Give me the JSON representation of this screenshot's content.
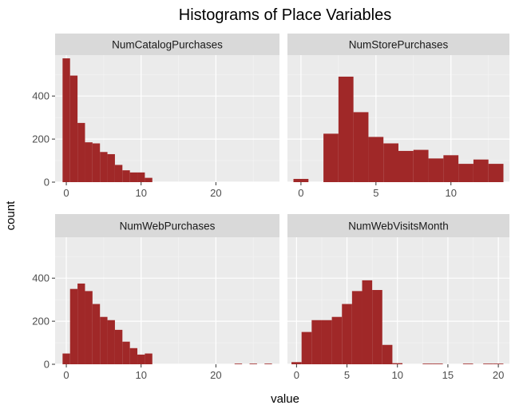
{
  "title": "Histograms of Place Variables",
  "xlabel": "value",
  "ylabel": "count",
  "colors": {
    "bar": "#A02828",
    "panel_bg": "#EBEBEB",
    "strip_bg": "#D9D9D9",
    "grid_major": "#FFFFFF",
    "grid_minor": "#F5F5F5",
    "tick_text": "#4D4D4D",
    "strip_text": "#1A1A1A"
  },
  "chart_data": [
    {
      "type": "bar",
      "panel": "NumCatalogPurchases",
      "bin_width": 1,
      "xlim": [
        -1.5,
        28.5
      ],
      "ylim": [
        0,
        590
      ],
      "x_ticks": [
        0,
        10,
        20
      ],
      "y_ticks": [
        0,
        200,
        400
      ],
      "bins": [
        {
          "x": 0,
          "count": 575
        },
        {
          "x": 1,
          "count": 495
        },
        {
          "x": 2,
          "count": 275
        },
        {
          "x": 3,
          "count": 185
        },
        {
          "x": 4,
          "count": 180
        },
        {
          "x": 5,
          "count": 140
        },
        {
          "x": 6,
          "count": 130
        },
        {
          "x": 7,
          "count": 80
        },
        {
          "x": 8,
          "count": 55
        },
        {
          "x": 9,
          "count": 45
        },
        {
          "x": 10,
          "count": 45
        },
        {
          "x": 11,
          "count": 20
        }
      ]
    },
    {
      "type": "bar",
      "panel": "NumStorePurchases",
      "bin_width": 1,
      "xlim": [
        -0.9,
        13.9
      ],
      "ylim": [
        0,
        590
      ],
      "x_ticks": [
        0,
        5,
        10
      ],
      "y_ticks": [
        0,
        200,
        400
      ],
      "bins": [
        {
          "x": 0,
          "count": 15
        },
        {
          "x": 2,
          "count": 225
        },
        {
          "x": 3,
          "count": 490
        },
        {
          "x": 4,
          "count": 325
        },
        {
          "x": 5,
          "count": 210
        },
        {
          "x": 6,
          "count": 180
        },
        {
          "x": 7,
          "count": 145
        },
        {
          "x": 8,
          "count": 150
        },
        {
          "x": 9,
          "count": 110
        },
        {
          "x": 10,
          "count": 125
        },
        {
          "x": 11,
          "count": 85
        },
        {
          "x": 12,
          "count": 105
        },
        {
          "x": 13,
          "count": 85
        }
      ]
    },
    {
      "type": "bar",
      "panel": "NumWebPurchases",
      "bin_width": 1,
      "xlim": [
        -1.5,
        28.5
      ],
      "ylim": [
        0,
        590
      ],
      "x_ticks": [
        0,
        10,
        20
      ],
      "y_ticks": [
        0,
        200,
        400
      ],
      "bins": [
        {
          "x": 0,
          "count": 50
        },
        {
          "x": 1,
          "count": 350
        },
        {
          "x": 2,
          "count": 375
        },
        {
          "x": 3,
          "count": 340
        },
        {
          "x": 4,
          "count": 280
        },
        {
          "x": 5,
          "count": 220
        },
        {
          "x": 6,
          "count": 205
        },
        {
          "x": 7,
          "count": 160
        },
        {
          "x": 8,
          "count": 105
        },
        {
          "x": 9,
          "count": 75
        },
        {
          "x": 10,
          "count": 45
        },
        {
          "x": 11,
          "count": 50
        },
        {
          "x": 23,
          "count": 3
        },
        {
          "x": 25,
          "count": 3
        },
        {
          "x": 27,
          "count": 3
        }
      ]
    },
    {
      "type": "bar",
      "panel": "NumWebVisitsMonth",
      "bin_width": 1,
      "xlim": [
        -0.9,
        21.1
      ],
      "ylim": [
        0,
        590
      ],
      "x_ticks": [
        0,
        5,
        10,
        15,
        20
      ],
      "y_ticks": [
        0,
        200,
        400
      ],
      "bins": [
        {
          "x": 0,
          "count": 10
        },
        {
          "x": 1,
          "count": 150
        },
        {
          "x": 2,
          "count": 205
        },
        {
          "x": 3,
          "count": 205
        },
        {
          "x": 4,
          "count": 220
        },
        {
          "x": 5,
          "count": 280
        },
        {
          "x": 6,
          "count": 340
        },
        {
          "x": 7,
          "count": 390
        },
        {
          "x": 8,
          "count": 345
        },
        {
          "x": 9,
          "count": 90
        },
        {
          "x": 10,
          "count": 5
        },
        {
          "x": 13,
          "count": 3
        },
        {
          "x": 14,
          "count": 3
        },
        {
          "x": 17,
          "count": 3
        },
        {
          "x": 19,
          "count": 3
        },
        {
          "x": 20,
          "count": 3
        }
      ]
    }
  ]
}
